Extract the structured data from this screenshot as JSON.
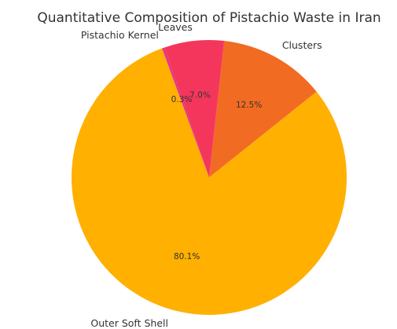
{
  "chart_data": {
    "type": "pie",
    "title": "Quantitative Composition of Pistachio Waste in Iran",
    "categories": [
      "Outer Soft Shell",
      "Clusters",
      "Leaves",
      "Pistachio Kernel"
    ],
    "values": [
      80.1,
      12.5,
      7.0,
      0.3
    ],
    "value_labels": [
      "80.1%",
      "12.5%",
      "7.0%",
      "0.3%"
    ],
    "colors": [
      "#FFB000",
      "#F26B22",
      "#F5365C",
      "#E5348A"
    ],
    "legend": "none"
  }
}
